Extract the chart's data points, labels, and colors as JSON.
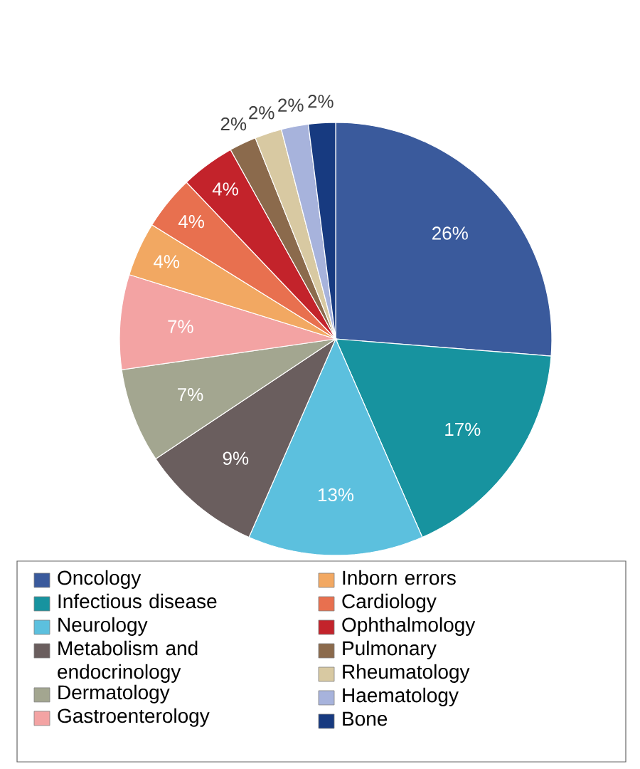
{
  "chart_data": {
    "type": "pie",
    "categories": [
      "Oncology",
      "Infectious disease",
      "Neurology",
      "Metabolism and endocrinology",
      "Dermatology",
      "Gastroenterology",
      "Inborn errors",
      "Cardiology",
      "Ophthalmology",
      "Pulmonary",
      "Rheumatology",
      "Haematology",
      "Bone"
    ],
    "values": [
      26,
      17,
      13,
      9,
      7,
      7,
      4,
      4,
      4,
      2,
      2,
      2,
      2
    ],
    "value_labels": [
      "26%",
      "17%",
      "13%",
      "9%",
      "7%",
      "7%",
      "4%",
      "4%",
      "4%",
      "2%",
      "2%",
      "2%",
      "2%"
    ],
    "colors": [
      "#3a5a9c",
      "#17939f",
      "#5cc0de",
      "#6a5e5e",
      "#a3a690",
      "#f3a3a3",
      "#f2a862",
      "#e8704f",
      "#c3232b",
      "#8b6a4c",
      "#d8c9a2",
      "#a7b3dc",
      "#173a80"
    ],
    "legend": "bottom"
  }
}
